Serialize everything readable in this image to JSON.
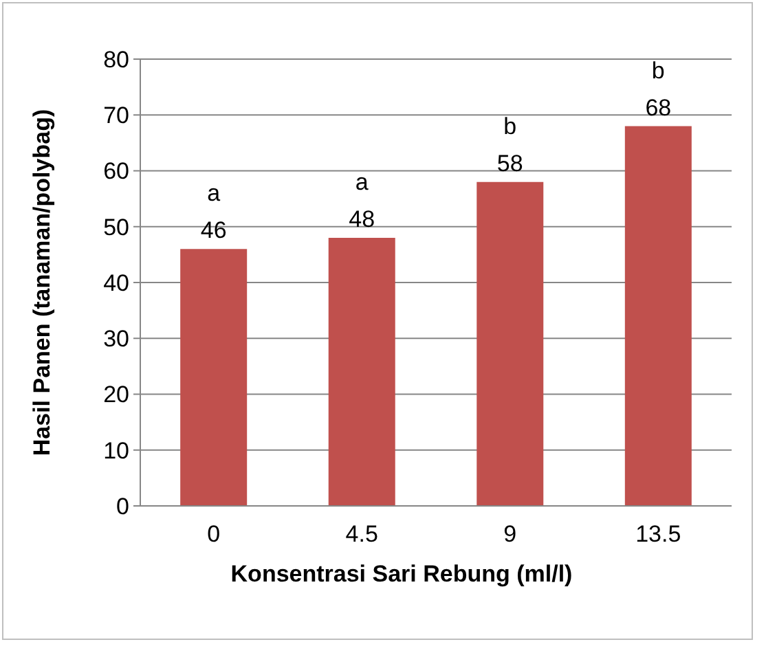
{
  "chart_data": {
    "type": "bar",
    "xlabel": "Konsentrasi Sari Rebung (ml/l)",
    "ylabel": "Hasil Panen (tanaman/polybag)",
    "categories": [
      "0",
      "4.5",
      "9",
      "13.5"
    ],
    "values": [
      46,
      48,
      58,
      68
    ],
    "color": "#c0504d",
    "ylim": [
      0,
      80
    ],
    "yticks": [
      0,
      10,
      20,
      30,
      40,
      50,
      60,
      70,
      80
    ],
    "grid": "y",
    "data_labels": true,
    "annotations": [
      {
        "text": "a",
        "x": "0",
        "y": 46
      },
      {
        "text": "a",
        "x": "4.5",
        "y": 48
      },
      {
        "text": "b",
        "x": "9",
        "y": 58
      },
      {
        "text": "b",
        "x": "13.5",
        "y": 68
      }
    ]
  }
}
